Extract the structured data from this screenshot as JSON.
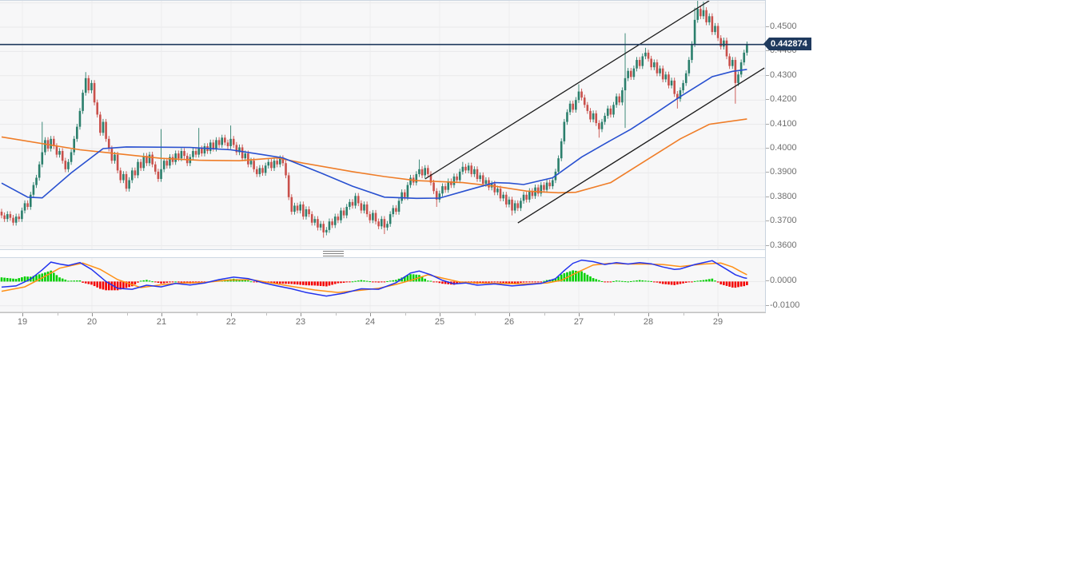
{
  "chart_data": {
    "type": "candlestick",
    "description": "Intraday candlestick price chart with two moving averages, an ascending black trend channel, a horizontal current-price line, and a MACD indicator sub-pane",
    "time_axis": {
      "labels": [
        "19",
        "20",
        "21",
        "22",
        "23",
        "24",
        "25",
        "26",
        "27",
        "28",
        "29"
      ]
    },
    "price_axis": {
      "labels": [
        "0.4500",
        "0.4400",
        "0.4300",
        "0.4200",
        "0.4100",
        "0.4000",
        "0.3900",
        "0.3800",
        "0.3700",
        "0.3600"
      ],
      "values": [
        0.45,
        0.44,
        0.43,
        0.42,
        0.41,
        0.4,
        0.39,
        0.38,
        0.37,
        0.36
      ],
      "unlabeled_gridlines": [
        0.46
      ],
      "range_top": 0.4609,
      "range_bottom": 0.3588
    },
    "current_price": "0.442874",
    "current_price_value": 0.442874,
    "candles": {
      "first_open": 0.374,
      "default_wick": 0.0012,
      "closes": [
        0.3725,
        0.371,
        0.373,
        0.3715,
        0.3695,
        0.372,
        0.371,
        0.3745,
        0.3775,
        0.376,
        0.381,
        0.385,
        0.388,
        0.3935,
        0.3985,
        0.4035,
        0.4,
        0.404,
        0.401,
        0.3975,
        0.399,
        0.395,
        0.3915,
        0.3945,
        0.3985,
        0.404,
        0.409,
        0.4155,
        0.423,
        0.429,
        0.424,
        0.427,
        0.419,
        0.414,
        0.4065,
        0.411,
        0.404,
        0.4,
        0.395,
        0.3975,
        0.391,
        0.387,
        0.3895,
        0.3835,
        0.387,
        0.391,
        0.389,
        0.3945,
        0.392,
        0.397,
        0.394,
        0.3975,
        0.3935,
        0.3905,
        0.3875,
        0.3915,
        0.395,
        0.393,
        0.3965,
        0.3945,
        0.398,
        0.396,
        0.399,
        0.397,
        0.394,
        0.3965,
        0.399,
        0.3975,
        0.4,
        0.398,
        0.401,
        0.399,
        0.4025,
        0.4,
        0.4035,
        0.4015,
        0.4045,
        0.4025,
        0.401,
        0.404,
        0.4015,
        0.3985,
        0.4005,
        0.396,
        0.398,
        0.3935,
        0.395,
        0.3915,
        0.3895,
        0.392,
        0.39,
        0.393,
        0.3945,
        0.392,
        0.395,
        0.3935,
        0.396,
        0.394,
        0.389,
        0.38,
        0.374,
        0.3765,
        0.3745,
        0.377,
        0.372,
        0.375,
        0.373,
        0.3695,
        0.371,
        0.3675,
        0.369,
        0.3655,
        0.3665,
        0.37,
        0.3685,
        0.372,
        0.3705,
        0.3745,
        0.3725,
        0.376,
        0.378,
        0.3765,
        0.3805,
        0.3775,
        0.3745,
        0.377,
        0.373,
        0.3705,
        0.3735,
        0.37,
        0.368,
        0.371,
        0.3675,
        0.369,
        0.373,
        0.3755,
        0.374,
        0.3785,
        0.382,
        0.38,
        0.385,
        0.388,
        0.386,
        0.3895,
        0.3915,
        0.389,
        0.392,
        0.3895,
        0.386,
        0.3825,
        0.379,
        0.3815,
        0.3845,
        0.383,
        0.3865,
        0.385,
        0.3885,
        0.387,
        0.3905,
        0.3925,
        0.391,
        0.393,
        0.3895,
        0.3915,
        0.3875,
        0.389,
        0.3855,
        0.387,
        0.384,
        0.3855,
        0.382,
        0.3835,
        0.3795,
        0.381,
        0.377,
        0.379,
        0.3745,
        0.3775,
        0.3755,
        0.3785,
        0.381,
        0.379,
        0.3825,
        0.3805,
        0.384,
        0.3815,
        0.385,
        0.383,
        0.386,
        0.3845,
        0.387,
        0.3905,
        0.396,
        0.403,
        0.411,
        0.415,
        0.4185,
        0.416,
        0.42,
        0.4235,
        0.421,
        0.418,
        0.4155,
        0.412,
        0.4145,
        0.4105,
        0.408,
        0.411,
        0.4135,
        0.4165,
        0.414,
        0.418,
        0.4215,
        0.419,
        0.424,
        0.429,
        0.432,
        0.4295,
        0.433,
        0.4365,
        0.434,
        0.438,
        0.4395,
        0.437,
        0.4335,
        0.4355,
        0.431,
        0.433,
        0.4285,
        0.4305,
        0.426,
        0.428,
        0.4225,
        0.4205,
        0.424,
        0.427,
        0.431,
        0.4365,
        0.443,
        0.453,
        0.4575,
        0.4545,
        0.457,
        0.452,
        0.4545,
        0.448,
        0.4505,
        0.4455,
        0.442,
        0.4445,
        0.438,
        0.434,
        0.4365,
        0.427,
        0.4305,
        0.4355,
        0.4395,
        0.442874
      ],
      "wick_overrides": {
        "14": {
          "h": 0.411
        },
        "29": {
          "h": 0.4315
        },
        "55": {
          "h": 0.408
        },
        "68": {
          "h": 0.4085
        },
        "79": {
          "h": 0.4095
        },
        "111": {
          "l": 0.3633
        },
        "132": {
          "l": 0.3648
        },
        "144": {
          "h": 0.3955
        },
        "150": {
          "l": 0.376
        },
        "159": {
          "h": 0.3945
        },
        "176": {
          "l": 0.3725
        },
        "199": {
          "h": 0.4265
        },
        "206": {
          "l": 0.4045
        },
        "215": {
          "h": 0.4475,
          "l": 0.4085
        },
        "222": {
          "h": 0.4415
        },
        "233": {
          "l": 0.4165
        },
        "239": {
          "h": 0.458
        },
        "240": {
          "h": 0.461
        },
        "242": {
          "h": 0.4605
        },
        "253": {
          "l": 0.4185
        }
      }
    },
    "sma_fast": [
      [
        0,
        0.3858
      ],
      [
        9,
        0.38
      ],
      [
        14,
        0.3797
      ],
      [
        24,
        0.39
      ],
      [
        35,
        0.4
      ],
      [
        43,
        0.4007
      ],
      [
        65,
        0.4005
      ],
      [
        79,
        0.3995
      ],
      [
        90,
        0.3975
      ],
      [
        97,
        0.3962
      ],
      [
        110,
        0.39
      ],
      [
        121,
        0.3845
      ],
      [
        132,
        0.38
      ],
      [
        143,
        0.3795
      ],
      [
        151,
        0.3796
      ],
      [
        161,
        0.383
      ],
      [
        170,
        0.386
      ],
      [
        175,
        0.3858
      ],
      [
        180,
        0.3852
      ],
      [
        190,
        0.388
      ],
      [
        200,
        0.3965
      ],
      [
        208,
        0.402
      ],
      [
        217,
        0.408
      ],
      [
        226,
        0.415
      ],
      [
        234,
        0.4214
      ],
      [
        245,
        0.4296
      ],
      [
        252,
        0.4318
      ],
      [
        257,
        0.4326
      ]
    ],
    "sma_slow": [
      [
        0,
        0.4048
      ],
      [
        27,
        0.3995
      ],
      [
        55,
        0.396
      ],
      [
        68,
        0.3952
      ],
      [
        82,
        0.395
      ],
      [
        95,
        0.3962
      ],
      [
        104,
        0.394
      ],
      [
        121,
        0.3905
      ],
      [
        132,
        0.3885
      ],
      [
        143,
        0.3868
      ],
      [
        159,
        0.386
      ],
      [
        170,
        0.3845
      ],
      [
        181,
        0.3825
      ],
      [
        192,
        0.3818
      ],
      [
        198,
        0.382
      ],
      [
        210,
        0.386
      ],
      [
        222,
        0.395
      ],
      [
        234,
        0.404
      ],
      [
        244,
        0.41
      ],
      [
        257,
        0.4122
      ]
    ],
    "trendlines": {
      "upper": [
        [
          146,
          0.3875
        ],
        [
          244,
          0.4609
        ]
      ],
      "lower": [
        [
          178,
          0.3694
        ],
        [
          263,
          0.4332
        ]
      ]
    },
    "macd": {
      "axis_labels": [
        "0.0000",
        "-0.0100"
      ],
      "axis_values": [
        0.0,
        -0.01
      ],
      "line": [
        [
          0,
          -0.0023
        ],
        [
          5,
          -0.0018
        ],
        [
          10,
          0.001
        ],
        [
          14,
          0.0048
        ],
        [
          17,
          0.008
        ],
        [
          20,
          0.0072
        ],
        [
          23,
          0.0066
        ],
        [
          27,
          0.0078
        ],
        [
          31,
          0.005
        ],
        [
          36,
          0.0
        ],
        [
          40,
          -0.0028
        ],
        [
          45,
          -0.0032
        ],
        [
          50,
          -0.0015
        ],
        [
          55,
          -0.0022
        ],
        [
          60,
          -0.0008
        ],
        [
          65,
          -0.0014
        ],
        [
          70,
          -0.0006
        ],
        [
          75,
          0.0008
        ],
        [
          80,
          0.0018
        ],
        [
          85,
          0.0012
        ],
        [
          90,
          -0.0005
        ],
        [
          95,
          -0.0018
        ],
        [
          100,
          -0.003
        ],
        [
          105,
          -0.0045
        ],
        [
          112,
          -0.006
        ],
        [
          118,
          -0.0048
        ],
        [
          124,
          -0.003
        ],
        [
          130,
          -0.0032
        ],
        [
          136,
          -0.0005
        ],
        [
          141,
          0.0035
        ],
        [
          144,
          0.0043
        ],
        [
          148,
          0.0028
        ],
        [
          152,
          0.0005
        ],
        [
          156,
          -0.001
        ],
        [
          160,
          -0.0006
        ],
        [
          164,
          -0.0015
        ],
        [
          170,
          -0.001
        ],
        [
          176,
          -0.0018
        ],
        [
          180,
          -0.0014
        ],
        [
          186,
          -0.0008
        ],
        [
          191,
          0.0012
        ],
        [
          194,
          0.0045
        ],
        [
          197,
          0.0075
        ],
        [
          200,
          0.0088
        ],
        [
          204,
          0.0082
        ],
        [
          208,
          0.007
        ],
        [
          212,
          0.0078
        ],
        [
          216,
          0.0072
        ],
        [
          220,
          0.0078
        ],
        [
          224,
          0.0073
        ],
        [
          228,
          0.006
        ],
        [
          232,
          0.005
        ],
        [
          234,
          0.0052
        ],
        [
          239,
          0.007
        ],
        [
          245,
          0.0086
        ],
        [
          250,
          0.005
        ],
        [
          253,
          0.0028
        ],
        [
          256,
          0.0015
        ],
        [
          257,
          0.0013
        ]
      ],
      "signal": [
        [
          0,
          -0.004
        ],
        [
          8,
          -0.0022
        ],
        [
          14,
          0.0015
        ],
        [
          20,
          0.0055
        ],
        [
          28,
          0.0076
        ],
        [
          34,
          0.005
        ],
        [
          40,
          0.0008
        ],
        [
          48,
          -0.0025
        ],
        [
          56,
          -0.0012
        ],
        [
          62,
          -0.0006
        ],
        [
          70,
          -0.0004
        ],
        [
          78,
          0.0006
        ],
        [
          86,
          0.0008
        ],
        [
          94,
          -0.0008
        ],
        [
          100,
          -0.002
        ],
        [
          108,
          -0.0035
        ],
        [
          116,
          -0.0045
        ],
        [
          124,
          -0.0036
        ],
        [
          130,
          -0.0028
        ],
        [
          136,
          -0.0012
        ],
        [
          142,
          0.0008
        ],
        [
          147,
          0.0028
        ],
        [
          152,
          0.0014
        ],
        [
          158,
          -0.0002
        ],
        [
          165,
          -0.0006
        ],
        [
          172,
          -0.0008
        ],
        [
          180,
          -0.001
        ],
        [
          188,
          -0.0006
        ],
        [
          193,
          0.0005
        ],
        [
          198,
          0.0035
        ],
        [
          204,
          0.0068
        ],
        [
          210,
          0.0075
        ],
        [
          216,
          0.0072
        ],
        [
          222,
          0.0072
        ],
        [
          228,
          0.007
        ],
        [
          234,
          0.0062
        ],
        [
          242,
          0.0072
        ],
        [
          248,
          0.0076
        ],
        [
          252,
          0.006
        ],
        [
          255,
          0.004
        ],
        [
          257,
          0.0028
        ]
      ]
    },
    "colors": {
      "candle_up": "#2b7f6c",
      "candle_down": "#c9504b",
      "sma_fast": "#2850d0",
      "sma_slow": "#ef7d28",
      "macd_line": "#2233ee",
      "macd_signal": "#ff9015",
      "hist_up": "#00cf00",
      "hist_down": "#f40000",
      "trendline": "#1a1a1a",
      "current_price_line": "#1f3a5e",
      "pane_bg": "#f7f7f8",
      "grid": "#e9e9ea",
      "grid_vertical": "#ececee"
    }
  }
}
